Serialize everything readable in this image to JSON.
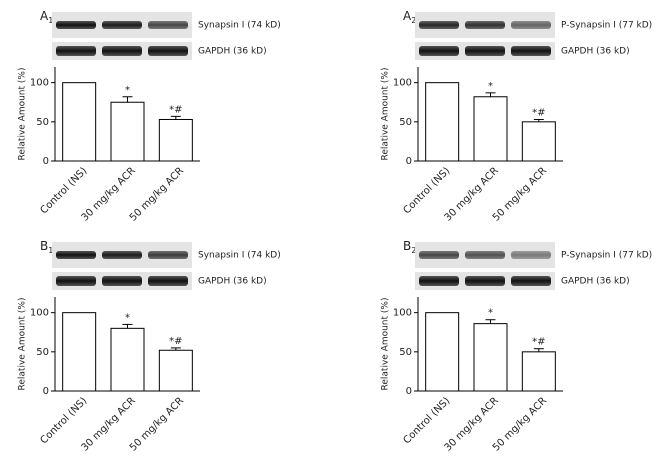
{
  "chart_data": [
    {
      "type": "bar",
      "panel": "A",
      "panel_sub": "1",
      "blot_labels": [
        "Synapsin I (74 kD)",
        "GAPDH (36 kD)"
      ],
      "ylabel": "Relative Amount (%)",
      "categories": [
        "Control (NS)",
        "30 mg/kg ACR",
        "50 mg/kg ACR"
      ],
      "values": [
        100,
        75,
        53
      ],
      "errors": [
        null,
        7,
        4
      ],
      "bar_labels": [
        null,
        "*",
        "*#"
      ],
      "ylim": [
        0,
        120
      ],
      "yticks": [
        0,
        50,
        100
      ]
    },
    {
      "type": "bar",
      "panel": "A",
      "panel_sub": "2",
      "blot_labels": [
        "P-Synapsin I (77 kD)",
        "GAPDH (36 kD)"
      ],
      "ylabel": "Relative Amount (%)",
      "categories": [
        "Control (NS)",
        "30 mg/kg ACR",
        "50 mg/kg ACR"
      ],
      "values": [
        100,
        82,
        50
      ],
      "errors": [
        null,
        5,
        3
      ],
      "bar_labels": [
        null,
        "*",
        "*#"
      ],
      "ylim": [
        0,
        120
      ],
      "yticks": [
        0,
        50,
        100
      ]
    },
    {
      "type": "bar",
      "panel": "B",
      "panel_sub": "1",
      "blot_labels": [
        "Synapsin I (74 kD)",
        "GAPDH (36 kD)"
      ],
      "ylabel": "Relative Amount (%)",
      "categories": [
        "Control (NS)",
        "30 mg/kg ACR",
        "50 mg/kg ACR"
      ],
      "values": [
        100,
        80,
        52
      ],
      "errors": [
        null,
        5,
        3
      ],
      "bar_labels": [
        null,
        "*",
        "*#"
      ],
      "ylim": [
        0,
        120
      ],
      "yticks": [
        0,
        50,
        100
      ]
    },
    {
      "type": "bar",
      "panel": "B",
      "panel_sub": "2",
      "blot_labels": [
        "P-Synapsin I (77 kD)",
        "GAPDH (36 kD)"
      ],
      "ylabel": "Relative Amount (%)",
      "categories": [
        "Control (NS)",
        "30 mg/kg ACR",
        "50 mg/kg ACR"
      ],
      "values": [
        100,
        86,
        50
      ],
      "errors": [
        null,
        5,
        4
      ],
      "bar_labels": [
        null,
        "*",
        "*#"
      ],
      "ylim": [
        0,
        120
      ],
      "yticks": [
        0,
        50,
        100
      ]
    }
  ]
}
